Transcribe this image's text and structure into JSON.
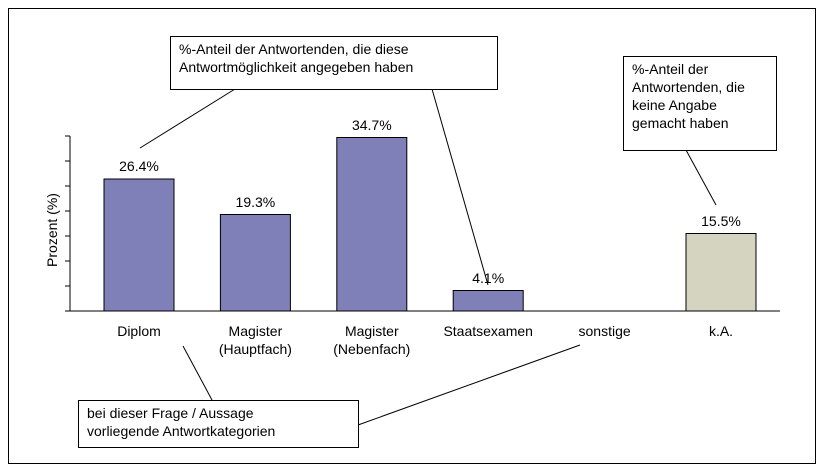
{
  "chart_data": {
    "type": "bar",
    "y_label": "Prozent (%)",
    "categories": [
      "Diplom",
      "Magister\n(Hauptfach)",
      "Magister\n(Nebenfach)",
      "Staatsexamen",
      "sonstige",
      "k.A."
    ],
    "values": [
      26.4,
      19.3,
      34.7,
      4.1,
      0,
      15.5
    ],
    "value_labels": [
      "26.4%",
      "19.3%",
      "34.7%",
      "4.1%",
      null,
      "15.5%"
    ],
    "colors": [
      "#8080b8",
      "#8080b8",
      "#8080b8",
      "#8080b8",
      "#8080b8",
      "#d4d4c0"
    ],
    "ylim": [
      0,
      35
    ],
    "yticks": [
      0,
      5,
      10,
      15,
      20,
      25,
      30,
      35
    ],
    "grid": false,
    "annotations": [
      {
        "text": "%-Anteil der Antwortenden, die diese\nAntwortmöglichkeit angegeben haben"
      },
      {
        "text": "%-Anteil der\nAntwortenden, die\nkeine Angabe\ngemacht haben"
      },
      {
        "text": "bei dieser Frage / Aussage\nvorliegende Antwortkategorien"
      }
    ]
  }
}
